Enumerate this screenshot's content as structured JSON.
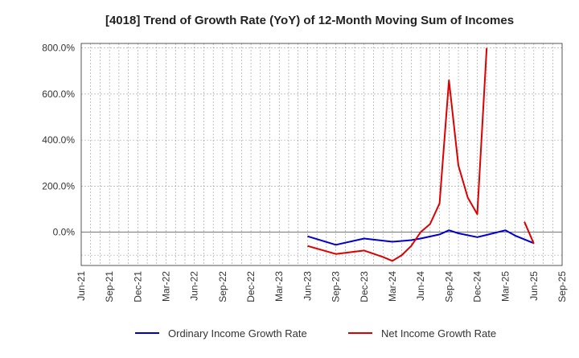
{
  "chart_data": {
    "type": "line",
    "title": "[4018]  Trend of Growth Rate (YoY) of 12-Month Moving Sum of Incomes",
    "xlabel": "",
    "ylabel": "",
    "x_ticks": [
      "Jun-21",
      "Sep-21",
      "Dec-21",
      "Mar-22",
      "Jun-22",
      "Sep-22",
      "Dec-22",
      "Mar-23",
      "Jun-23",
      "Sep-23",
      "Dec-23",
      "Mar-24",
      "Jun-24",
      "Sep-24",
      "Dec-24",
      "Mar-25",
      "Jun-25",
      "Sep-25"
    ],
    "y_ticks": [
      0,
      200,
      400,
      600,
      800
    ],
    "y_tick_labels": [
      "0.0%",
      "200.0%",
      "400.0%",
      "600.0%",
      "800.0%"
    ],
    "ylim": [
      -145,
      820
    ],
    "x_range": [
      "Jun-21",
      "Sep-25"
    ],
    "grid": true,
    "legend": "bottom-center",
    "series": [
      {
        "name": "Ordinary Income Growth Rate",
        "color": "#0000cc",
        "points": [
          [
            "Jun-23",
            -18
          ],
          [
            "Sep-23",
            -55
          ],
          [
            "Dec-23",
            -28
          ],
          [
            "Mar-24",
            -42
          ],
          [
            "May-24",
            -35
          ],
          [
            "Jun-24",
            -28
          ],
          [
            "Aug-24",
            -10
          ],
          [
            "Sep-24",
            8
          ],
          [
            "Oct-24",
            -5
          ],
          [
            "Dec-24",
            -22
          ],
          [
            "Jan-25",
            -12
          ],
          [
            "Mar-25",
            8
          ],
          [
            "Apr-25",
            -15
          ],
          [
            "Jun-25",
            -48
          ]
        ]
      },
      {
        "name": "Net Income Growth Rate",
        "color": "#dd0000",
        "segments": [
          [
            [
              "Jun-23",
              -60
            ],
            [
              "Sep-23",
              -95
            ],
            [
              "Dec-23",
              -80
            ],
            [
              "Feb-24",
              -108
            ],
            [
              "Mar-24",
              -125
            ],
            [
              "Apr-24",
              -100
            ],
            [
              "May-24",
              -60
            ],
            [
              "Jun-24",
              0
            ],
            [
              "Jul-24",
              35
            ],
            [
              "Aug-24",
              125
            ],
            [
              "Sep-24",
              660
            ],
            [
              "Oct-24",
              290
            ],
            [
              "Nov-24",
              150
            ],
            [
              "Dec-24",
              78
            ],
            [
              "Jan-25",
              800
            ]
          ],
          [
            [
              "May-25",
              45
            ],
            [
              "Jun-25",
              -50
            ]
          ]
        ]
      }
    ]
  }
}
